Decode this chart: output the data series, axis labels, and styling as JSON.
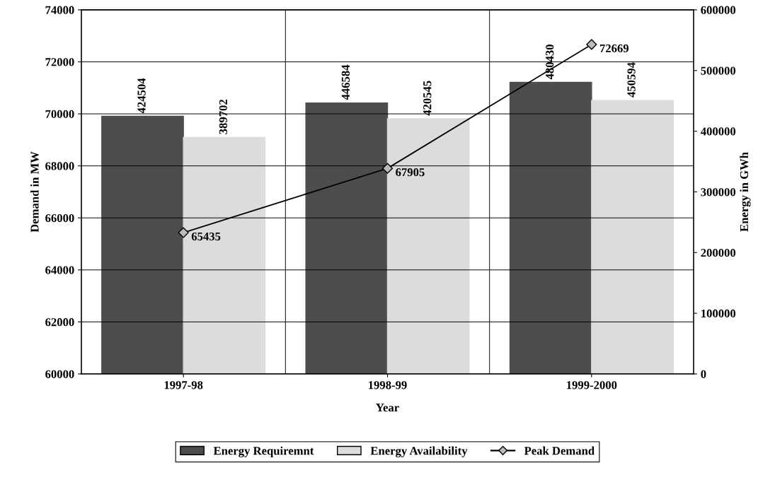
{
  "chart_data": {
    "type": "bar",
    "xlabel": "Year",
    "ylabel": "Demand in MW",
    "y2label": "Energy in GWh",
    "categories": [
      "1997-98",
      "1998-99",
      "1999-2000"
    ],
    "series": [
      {
        "name": "Energy Requiremnt",
        "axis": "y2",
        "color": "#4d4d4d",
        "values": [
          424504,
          446584,
          480430
        ]
      },
      {
        "name": "Energy Availability",
        "axis": "y2",
        "color": "#dcdcdc",
        "values": [
          389702,
          420545,
          450594
        ]
      },
      {
        "name": "Peak Demand",
        "type": "line",
        "axis": "y",
        "color": "#000000",
        "marker": "diamond",
        "values": [
          65435,
          67905,
          72669
        ]
      }
    ],
    "ylim": [
      60000,
      74000
    ],
    "yticks": [
      60000,
      62000,
      64000,
      66000,
      68000,
      70000,
      72000,
      74000
    ],
    "y2lim": [
      0,
      600000
    ],
    "y2ticks": [
      0,
      100000,
      200000,
      300000,
      400000,
      500000,
      600000
    ],
    "grid": true,
    "legend": "bottom",
    "data_labels": true
  }
}
